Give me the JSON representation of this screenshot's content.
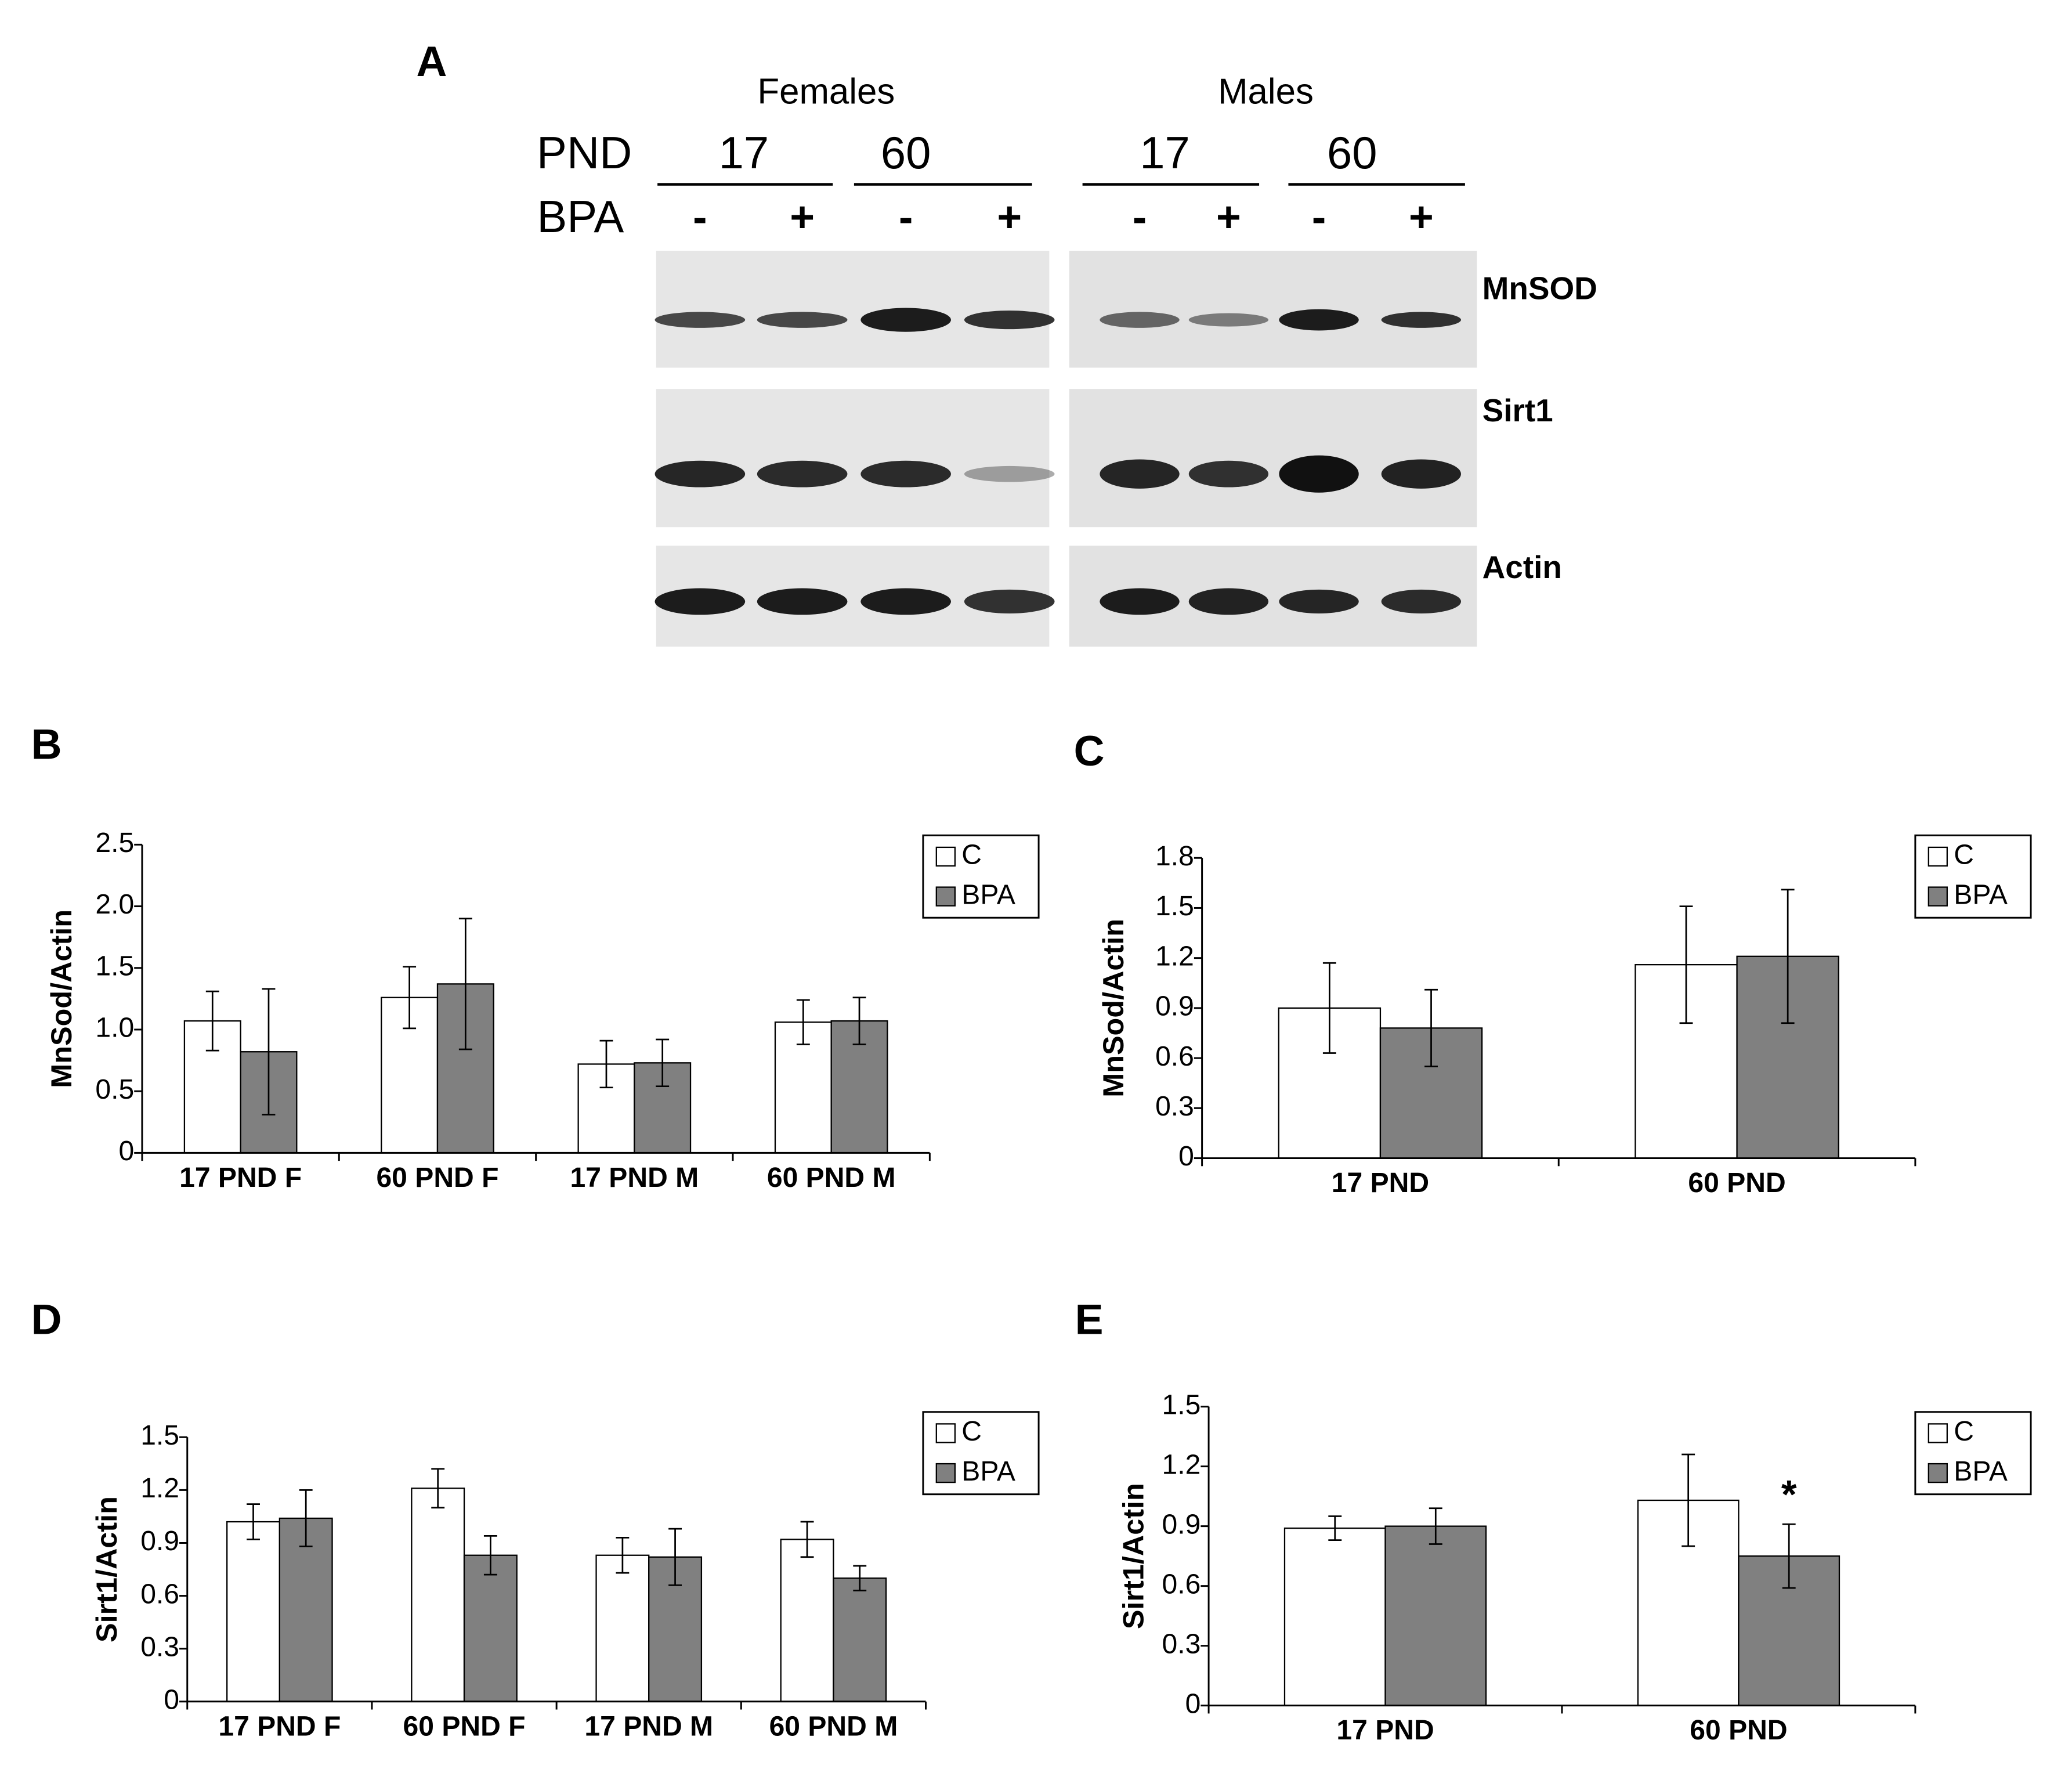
{
  "blot": {
    "label": "A",
    "groups": [
      {
        "name": "Females",
        "pnd": [
          "17",
          "60"
        ]
      },
      {
        "name": "Males",
        "pnd": [
          "17",
          "60"
        ]
      }
    ],
    "pnd_label": "PND",
    "bpa_label": "BPA",
    "bpa": [
      "-",
      "+",
      "-",
      "+",
      "-",
      "+",
      "-",
      "+"
    ],
    "proteins": [
      "MnSOD",
      "Sirt1",
      "Actin"
    ]
  },
  "chart_data": [
    {
      "type": "bar",
      "panel_label": "B",
      "y_label": "MnSod/Actin",
      "categories": [
        "17 PND F",
        "60 PND F",
        "17 PND M",
        "60 PND M"
      ],
      "series": [
        {
          "name": "C",
          "color": "#ffffff",
          "values": [
            1.07,
            1.26,
            0.72,
            1.06
          ],
          "errors": [
            0.24,
            0.25,
            0.19,
            0.18
          ]
        },
        {
          "name": "BPA",
          "color": "#808080",
          "values": [
            0.82,
            1.37,
            0.73,
            1.07
          ],
          "errors": [
            0.51,
            0.53,
            0.19,
            0.19
          ]
        }
      ],
      "ylim": [
        0,
        2.5
      ],
      "yticks": [
        0,
        0.5,
        {
          "value": 1,
          "label": "1.0"
        },
        1.5,
        {
          "value": 2,
          "label": "2.0"
        },
        2.5
      ],
      "legend": "upper right"
    },
    {
      "type": "bar",
      "panel_label": "C",
      "y_label": "MnSod/Actin",
      "categories": [
        "17 PND",
        "60 PND"
      ],
      "series": [
        {
          "name": "C",
          "color": "#ffffff",
          "values": [
            0.9,
            1.16
          ],
          "errors": [
            0.27,
            0.35
          ]
        },
        {
          "name": "BPA",
          "color": "#808080",
          "values": [
            0.78,
            1.21
          ],
          "errors": [
            0.23,
            0.4
          ]
        }
      ],
      "ylim": [
        0,
        1.8
      ],
      "yticks": [
        0,
        0.3,
        0.6,
        0.9,
        1.2,
        1.5,
        1.8
      ],
      "legend": "upper right"
    },
    {
      "type": "bar",
      "panel_label": "D",
      "y_label": "Sirt1/Actin",
      "categories": [
        "17 PND F",
        "60 PND F",
        "17 PND M",
        "60 PND M"
      ],
      "series": [
        {
          "name": "C",
          "color": "#ffffff",
          "values": [
            1.02,
            1.21,
            0.83,
            0.92
          ],
          "errors": [
            0.1,
            0.11,
            0.1,
            0.1
          ]
        },
        {
          "name": "BPA",
          "color": "#808080",
          "values": [
            1.04,
            0.83,
            0.82,
            0.7
          ],
          "errors": [
            0.16,
            0.11,
            0.16,
            0.07
          ]
        }
      ],
      "ylim": [
        0,
        1.5
      ],
      "yticks": [
        0,
        0.3,
        0.6,
        0.9,
        1.2,
        1.5
      ],
      "legend": "upper right"
    },
    {
      "type": "bar",
      "panel_label": "E",
      "y_label": "Sirt1/Actin",
      "categories": [
        "17 PND",
        "60 PND"
      ],
      "series": [
        {
          "name": "C",
          "color": "#ffffff",
          "values": [
            0.89,
            1.03
          ],
          "errors": [
            0.06,
            0.23
          ]
        },
        {
          "name": "BPA",
          "color": "#808080",
          "values": [
            0.9,
            0.75
          ],
          "errors": [
            0.09,
            0.16
          ]
        }
      ],
      "ylim": [
        0,
        1.5
      ],
      "yticks": [
        0,
        0.3,
        0.6,
        0.9,
        1.2,
        1.5
      ],
      "significance": "*",
      "legend": "upper right"
    }
  ]
}
